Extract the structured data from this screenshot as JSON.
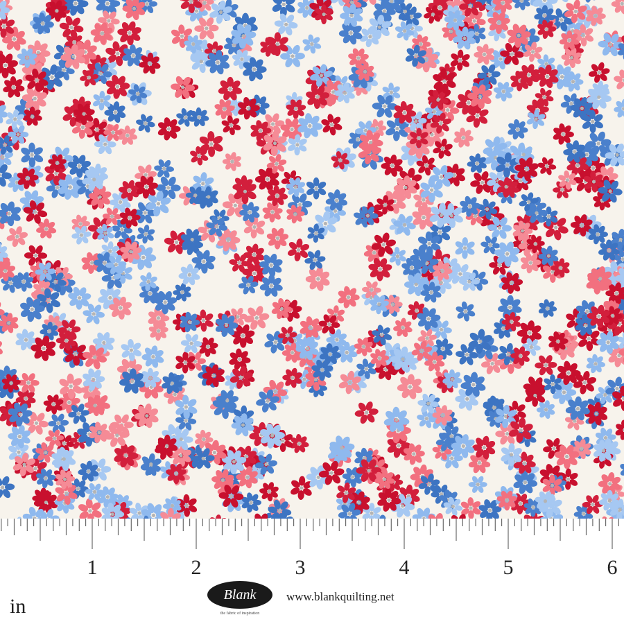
{
  "ruler": {
    "labels": [
      "1",
      "2",
      "3",
      "4",
      "5",
      "6"
    ],
    "unit": "in"
  },
  "logo": {
    "name": "Blank",
    "tagline": "the fabric of inspiration"
  },
  "website": "www.blankquilting.net"
}
